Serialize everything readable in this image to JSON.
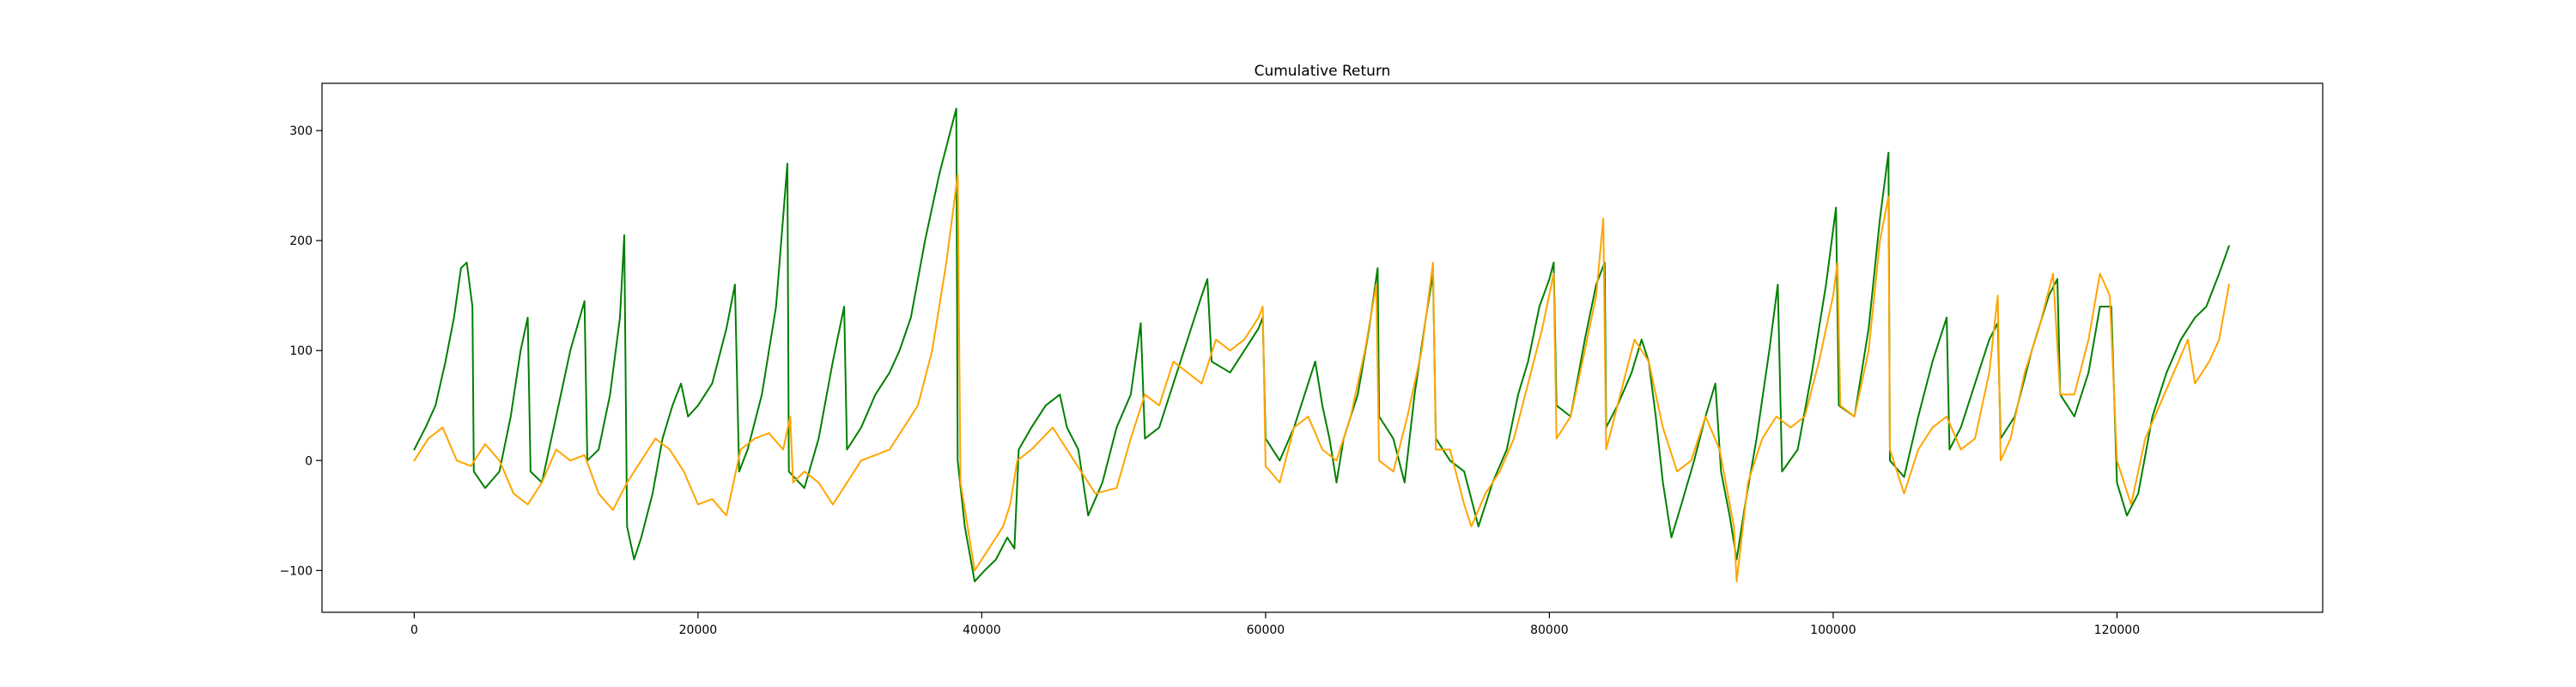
{
  "chart_data": {
    "type": "line",
    "title": "Cumulative Return",
    "xlabel": "",
    "ylabel": "",
    "xlim": [
      -6500,
      134500
    ],
    "ylim": [
      -138,
      343
    ],
    "xticks": [
      0,
      20000,
      40000,
      60000,
      80000,
      100000,
      120000
    ],
    "yticks": [
      -100,
      0,
      100,
      200,
      300
    ],
    "grid": false,
    "legend": "none",
    "series": [
      {
        "color": "#008000",
        "points": [
          [
            0,
            10
          ],
          [
            800,
            30
          ],
          [
            1500,
            50
          ],
          [
            2200,
            90
          ],
          [
            2800,
            130
          ],
          [
            3300,
            175
          ],
          [
            3700,
            180
          ],
          [
            4100,
            140
          ],
          [
            4200,
            -10
          ],
          [
            5000,
            -25
          ],
          [
            6000,
            -10
          ],
          [
            6800,
            40
          ],
          [
            7500,
            100
          ],
          [
            8000,
            130
          ],
          [
            8200,
            -10
          ],
          [
            9000,
            -20
          ],
          [
            10000,
            40
          ],
          [
            11000,
            100
          ],
          [
            12000,
            145
          ],
          [
            12200,
            0
          ],
          [
            13000,
            10
          ],
          [
            13800,
            60
          ],
          [
            14500,
            130
          ],
          [
            14800,
            205
          ],
          [
            15000,
            -60
          ],
          [
            15500,
            -90
          ],
          [
            16000,
            -70
          ],
          [
            16800,
            -30
          ],
          [
            17500,
            20
          ],
          [
            18200,
            50
          ],
          [
            18800,
            70
          ],
          [
            19300,
            40
          ],
          [
            20000,
            50
          ],
          [
            21000,
            70
          ],
          [
            22000,
            120
          ],
          [
            22600,
            160
          ],
          [
            22900,
            -10
          ],
          [
            23500,
            10
          ],
          [
            24500,
            60
          ],
          [
            25500,
            140
          ],
          [
            26300,
            270
          ],
          [
            26400,
            -10
          ],
          [
            27500,
            -25
          ],
          [
            28500,
            20
          ],
          [
            29500,
            90
          ],
          [
            30300,
            140
          ],
          [
            30500,
            10
          ],
          [
            31500,
            30
          ],
          [
            32500,
            60
          ],
          [
            33500,
            80
          ],
          [
            34200,
            100
          ],
          [
            35000,
            130
          ],
          [
            36000,
            200
          ],
          [
            37000,
            260
          ],
          [
            37800,
            300
          ],
          [
            38200,
            320
          ],
          [
            38300,
            0
          ],
          [
            38800,
            -60
          ],
          [
            39500,
            -110
          ],
          [
            40200,
            -100
          ],
          [
            41000,
            -90
          ],
          [
            41800,
            -70
          ],
          [
            42300,
            -80
          ],
          [
            42600,
            10
          ],
          [
            43500,
            30
          ],
          [
            44500,
            50
          ],
          [
            45500,
            60
          ],
          [
            46000,
            30
          ],
          [
            46800,
            10
          ],
          [
            47500,
            -50
          ],
          [
            48500,
            -20
          ],
          [
            49500,
            30
          ],
          [
            50500,
            60
          ],
          [
            51200,
            125
          ],
          [
            51500,
            20
          ],
          [
            52500,
            30
          ],
          [
            53500,
            70
          ],
          [
            54500,
            110
          ],
          [
            55500,
            150
          ],
          [
            55900,
            165
          ],
          [
            56200,
            90
          ],
          [
            57500,
            80
          ],
          [
            58500,
            100
          ],
          [
            59500,
            120
          ],
          [
            59800,
            130
          ],
          [
            60000,
            20
          ],
          [
            61000,
            0
          ],
          [
            62000,
            30
          ],
          [
            63000,
            70
          ],
          [
            63500,
            90
          ],
          [
            64000,
            50
          ],
          [
            64500,
            20
          ],
          [
            65000,
            -20
          ],
          [
            65500,
            20
          ],
          [
            66500,
            60
          ],
          [
            67300,
            120
          ],
          [
            67900,
            175
          ],
          [
            68000,
            40
          ],
          [
            69000,
            20
          ],
          [
            69800,
            -20
          ],
          [
            70500,
            60
          ],
          [
            71300,
            130
          ],
          [
            71800,
            170
          ],
          [
            72000,
            20
          ],
          [
            73000,
            0
          ],
          [
            74000,
            -10
          ],
          [
            75000,
            -60
          ],
          [
            76000,
            -20
          ],
          [
            77000,
            10
          ],
          [
            77800,
            60
          ],
          [
            78500,
            90
          ],
          [
            79300,
            140
          ],
          [
            80000,
            165
          ],
          [
            80300,
            180
          ],
          [
            80500,
            50
          ],
          [
            81500,
            40
          ],
          [
            82500,
            110
          ],
          [
            83300,
            160
          ],
          [
            83900,
            180
          ],
          [
            84000,
            30
          ],
          [
            84800,
            50
          ],
          [
            85800,
            80
          ],
          [
            86500,
            110
          ],
          [
            87000,
            90
          ],
          [
            87500,
            40
          ],
          [
            88000,
            -20
          ],
          [
            88600,
            -70
          ],
          [
            89300,
            -40
          ],
          [
            90200,
            0
          ],
          [
            91000,
            40
          ],
          [
            91700,
            70
          ],
          [
            92100,
            -10
          ],
          [
            92700,
            -50
          ],
          [
            93200,
            -90
          ],
          [
            93800,
            -40
          ],
          [
            94600,
            20
          ],
          [
            95500,
            100
          ],
          [
            96100,
            160
          ],
          [
            96400,
            -10
          ],
          [
            97500,
            10
          ],
          [
            98500,
            80
          ],
          [
            99500,
            160
          ],
          [
            100200,
            230
          ],
          [
            100400,
            50
          ],
          [
            101500,
            40
          ],
          [
            102500,
            120
          ],
          [
            103300,
            220
          ],
          [
            103900,
            280
          ],
          [
            104000,
            0
          ],
          [
            105000,
            -15
          ],
          [
            106000,
            40
          ],
          [
            107000,
            90
          ],
          [
            108000,
            130
          ],
          [
            108200,
            10
          ],
          [
            109000,
            30
          ],
          [
            110000,
            70
          ],
          [
            111000,
            110
          ],
          [
            111600,
            125
          ],
          [
            111800,
            20
          ],
          [
            112800,
            40
          ],
          [
            114000,
            100
          ],
          [
            115200,
            150
          ],
          [
            115800,
            165
          ],
          [
            116000,
            60
          ],
          [
            117000,
            40
          ],
          [
            118000,
            80
          ],
          [
            118800,
            140
          ],
          [
            119600,
            140
          ],
          [
            120000,
            -20
          ],
          [
            120700,
            -50
          ],
          [
            121500,
            -30
          ],
          [
            122500,
            40
          ],
          [
            123500,
            80
          ],
          [
            124500,
            110
          ],
          [
            125500,
            130
          ],
          [
            126300,
            140
          ],
          [
            127200,
            170
          ],
          [
            127900,
            195
          ]
        ]
      },
      {
        "color": "#FFA500",
        "points": [
          [
            0,
            0
          ],
          [
            1000,
            20
          ],
          [
            2000,
            30
          ],
          [
            3000,
            0
          ],
          [
            4000,
            -5
          ],
          [
            5000,
            15
          ],
          [
            6000,
            0
          ],
          [
            7000,
            -30
          ],
          [
            8000,
            -40
          ],
          [
            9000,
            -20
          ],
          [
            10000,
            10
          ],
          [
            11000,
            0
          ],
          [
            12000,
            5
          ],
          [
            13000,
            -30
          ],
          [
            14000,
            -45
          ],
          [
            15000,
            -20
          ],
          [
            16000,
            0
          ],
          [
            17000,
            20
          ],
          [
            18000,
            10
          ],
          [
            19000,
            -10
          ],
          [
            20000,
            -40
          ],
          [
            21000,
            -35
          ],
          [
            22000,
            -50
          ],
          [
            23000,
            10
          ],
          [
            24000,
            20
          ],
          [
            25000,
            25
          ],
          [
            26000,
            10
          ],
          [
            26500,
            40
          ],
          [
            26700,
            -20
          ],
          [
            27500,
            -10
          ],
          [
            28500,
            -20
          ],
          [
            29500,
            -40
          ],
          [
            30500,
            -20
          ],
          [
            31500,
            0
          ],
          [
            32500,
            5
          ],
          [
            33500,
            10
          ],
          [
            34500,
            30
          ],
          [
            35500,
            50
          ],
          [
            36500,
            100
          ],
          [
            37500,
            180
          ],
          [
            38000,
            230
          ],
          [
            38300,
            260
          ],
          [
            38500,
            -20
          ],
          [
            39500,
            -100
          ],
          [
            40500,
            -80
          ],
          [
            41500,
            -60
          ],
          [
            42000,
            -40
          ],
          [
            42500,
            0
          ],
          [
            43500,
            10
          ],
          [
            45000,
            30
          ],
          [
            46500,
            0
          ],
          [
            48000,
            -30
          ],
          [
            49500,
            -25
          ],
          [
            50500,
            20
          ],
          [
            51500,
            60
          ],
          [
            52500,
            50
          ],
          [
            53500,
            90
          ],
          [
            54500,
            80
          ],
          [
            55500,
            70
          ],
          [
            56500,
            110
          ],
          [
            57500,
            100
          ],
          [
            58500,
            110
          ],
          [
            59500,
            130
          ],
          [
            59800,
            140
          ],
          [
            60000,
            -5
          ],
          [
            61000,
            -20
          ],
          [
            62000,
            30
          ],
          [
            63000,
            40
          ],
          [
            64000,
            10
          ],
          [
            65000,
            0
          ],
          [
            66000,
            40
          ],
          [
            67000,
            100
          ],
          [
            67800,
            160
          ],
          [
            68000,
            0
          ],
          [
            69000,
            -10
          ],
          [
            70000,
            40
          ],
          [
            71000,
            100
          ],
          [
            71800,
            180
          ],
          [
            72000,
            10
          ],
          [
            73000,
            10
          ],
          [
            74000,
            -40
          ],
          [
            74500,
            -60
          ],
          [
            75500,
            -30
          ],
          [
            76500,
            -10
          ],
          [
            77500,
            20
          ],
          [
            78500,
            70
          ],
          [
            79500,
            120
          ],
          [
            80300,
            170
          ],
          [
            80500,
            20
          ],
          [
            81500,
            40
          ],
          [
            82500,
            100
          ],
          [
            83300,
            150
          ],
          [
            83800,
            220
          ],
          [
            84000,
            10
          ],
          [
            85000,
            60
          ],
          [
            86000,
            110
          ],
          [
            87000,
            90
          ],
          [
            88000,
            30
          ],
          [
            89000,
            -10
          ],
          [
            90000,
            0
          ],
          [
            91000,
            40
          ],
          [
            92000,
            10
          ],
          [
            93000,
            -60
          ],
          [
            93200,
            -110
          ],
          [
            94000,
            -20
          ],
          [
            95000,
            20
          ],
          [
            96000,
            40
          ],
          [
            97000,
            30
          ],
          [
            98000,
            40
          ],
          [
            99000,
            90
          ],
          [
            100000,
            150
          ],
          [
            100300,
            180
          ],
          [
            100500,
            50
          ],
          [
            101500,
            40
          ],
          [
            102500,
            100
          ],
          [
            103300,
            200
          ],
          [
            103900,
            240
          ],
          [
            104000,
            10
          ],
          [
            105000,
            -30
          ],
          [
            106000,
            10
          ],
          [
            107000,
            30
          ],
          [
            108000,
            40
          ],
          [
            109000,
            10
          ],
          [
            110000,
            20
          ],
          [
            111000,
            80
          ],
          [
            111600,
            150
          ],
          [
            111800,
            0
          ],
          [
            112500,
            20
          ],
          [
            113500,
            80
          ],
          [
            114500,
            120
          ],
          [
            115500,
            170
          ],
          [
            116000,
            60
          ],
          [
            117000,
            60
          ],
          [
            118000,
            110
          ],
          [
            118800,
            170
          ],
          [
            119500,
            150
          ],
          [
            120000,
            0
          ],
          [
            121000,
            -40
          ],
          [
            122000,
            20
          ],
          [
            123000,
            50
          ],
          [
            124000,
            80
          ],
          [
            125000,
            110
          ],
          [
            125500,
            70
          ],
          [
            126500,
            90
          ],
          [
            127200,
            110
          ],
          [
            127900,
            160
          ]
        ]
      }
    ]
  }
}
